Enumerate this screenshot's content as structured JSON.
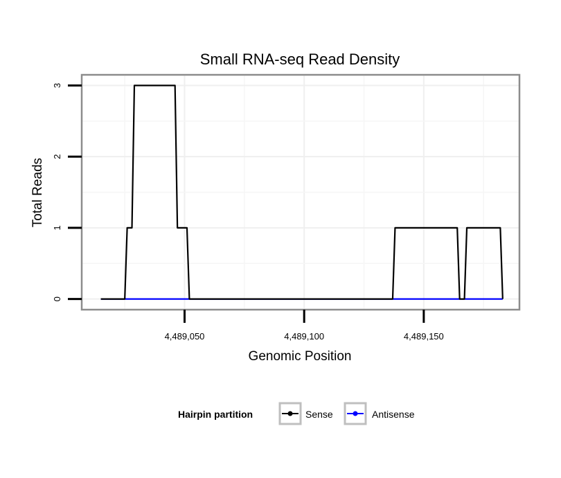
{
  "chart_data": {
    "type": "line",
    "title": "Small RNA-seq Read Density",
    "xlabel": "Genomic Position",
    "ylabel": "Total Reads",
    "xlim": [
      4489007,
      4489190
    ],
    "ylim": [
      -0.15,
      3.15
    ],
    "x_ticks": [
      4489050,
      4489100,
      4489150
    ],
    "x_tick_labels": [
      "4,489,050",
      "4,489,100",
      "4,489,150"
    ],
    "y_ticks": [
      0,
      1,
      2,
      3
    ],
    "y_tick_labels": [
      "0",
      "1",
      "2",
      "3"
    ],
    "grid": true,
    "legend": {
      "title": "Hairpin partition",
      "position": "bottom",
      "entries": [
        "Sense",
        "Antisense"
      ]
    },
    "series": [
      {
        "name": "Antisense",
        "color": "#0000ff",
        "x": [
          4489015,
          4489183
        ],
        "y": [
          0,
          0
        ]
      },
      {
        "name": "Sense",
        "color": "#000000",
        "x": [
          4489015,
          4489025,
          4489026,
          4489028,
          4489029,
          4489046,
          4489047,
          4489051,
          4489052,
          4489137,
          4489138,
          4489164,
          4489165,
          4489167,
          4489168,
          4489182,
          4489183
        ],
        "y": [
          0,
          0,
          1,
          1,
          3,
          3,
          1,
          1,
          0,
          0,
          1,
          1,
          0,
          0,
          1,
          1,
          0
        ]
      }
    ]
  }
}
